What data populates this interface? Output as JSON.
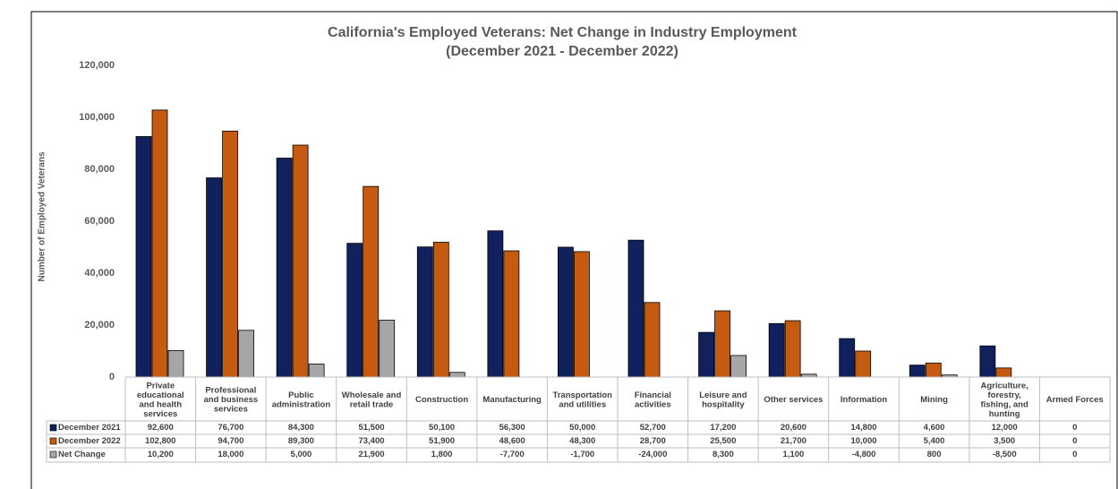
{
  "chart_data": {
    "type": "bar",
    "title": "California's Employed Veterans: Net Change in Industry Employment",
    "subtitle": "(December 2021 - December 2022)",
    "y_label": "Number of Employed Veterans",
    "categories": [
      "Private educational and health services",
      "Professional and business services",
      "Public administration",
      "Wholesale and retail trade",
      "Construction",
      "Manufacturing",
      "Transportation and utilities",
      "Financial activities",
      "Leisure and hospitality",
      "Other services",
      "Information",
      "Mining",
      "Agriculture, forestry, fishing, and hunting",
      "Armed Forces"
    ],
    "series": [
      {
        "name": "December 2021",
        "color": "#10215e",
        "values": [
          92600,
          76700,
          84300,
          51500,
          50100,
          56300,
          50000,
          52700,
          17200,
          20600,
          14800,
          4600,
          12000,
          0
        ],
        "value_labels": [
          "92,600",
          "76,700",
          "84,300",
          "51,500",
          "50,100",
          "56,300",
          "50,000",
          "52,700",
          "17,200",
          "20,600",
          "14,800",
          "4,600",
          "12,000",
          "0"
        ]
      },
      {
        "name": "December 2022",
        "color": "#c55a11",
        "values": [
          102800,
          94700,
          89300,
          73400,
          51900,
          48600,
          48300,
          28700,
          25500,
          21700,
          10000,
          5400,
          3500,
          0
        ],
        "value_labels": [
          "102,800",
          "94,700",
          "89,300",
          "73,400",
          "51,900",
          "48,600",
          "48,300",
          "28,700",
          "25,500",
          "21,700",
          "10,000",
          "5,400",
          "3,500",
          "0"
        ]
      },
      {
        "name": "Net Change",
        "color": "#a6a6a6",
        "values": [
          10200,
          18000,
          5000,
          21900,
          1800,
          -7700,
          -1700,
          -24000,
          8300,
          1100,
          -4800,
          800,
          -8500,
          0
        ],
        "value_labels": [
          "10,200",
          "18,000",
          "5,000",
          "21,900",
          "1,800",
          "-7,700",
          "-1,700",
          "-24,000",
          "8,300",
          "1,100",
          "-4,800",
          "800",
          "-8,500",
          "0"
        ]
      }
    ],
    "ylim": [
      0,
      120000
    ],
    "yticks": [
      0,
      {
        "value": 20000,
        "label": "20,000"
      },
      {
        "value": 40000,
        "label": "40,000"
      },
      {
        "value": 60000,
        "label": "60,000"
      },
      {
        "value": 80000,
        "label": "80,000"
      },
      {
        "value": 100000,
        "label": "100,000"
      },
      {
        "value": 120000,
        "label": "120,000"
      }
    ]
  }
}
